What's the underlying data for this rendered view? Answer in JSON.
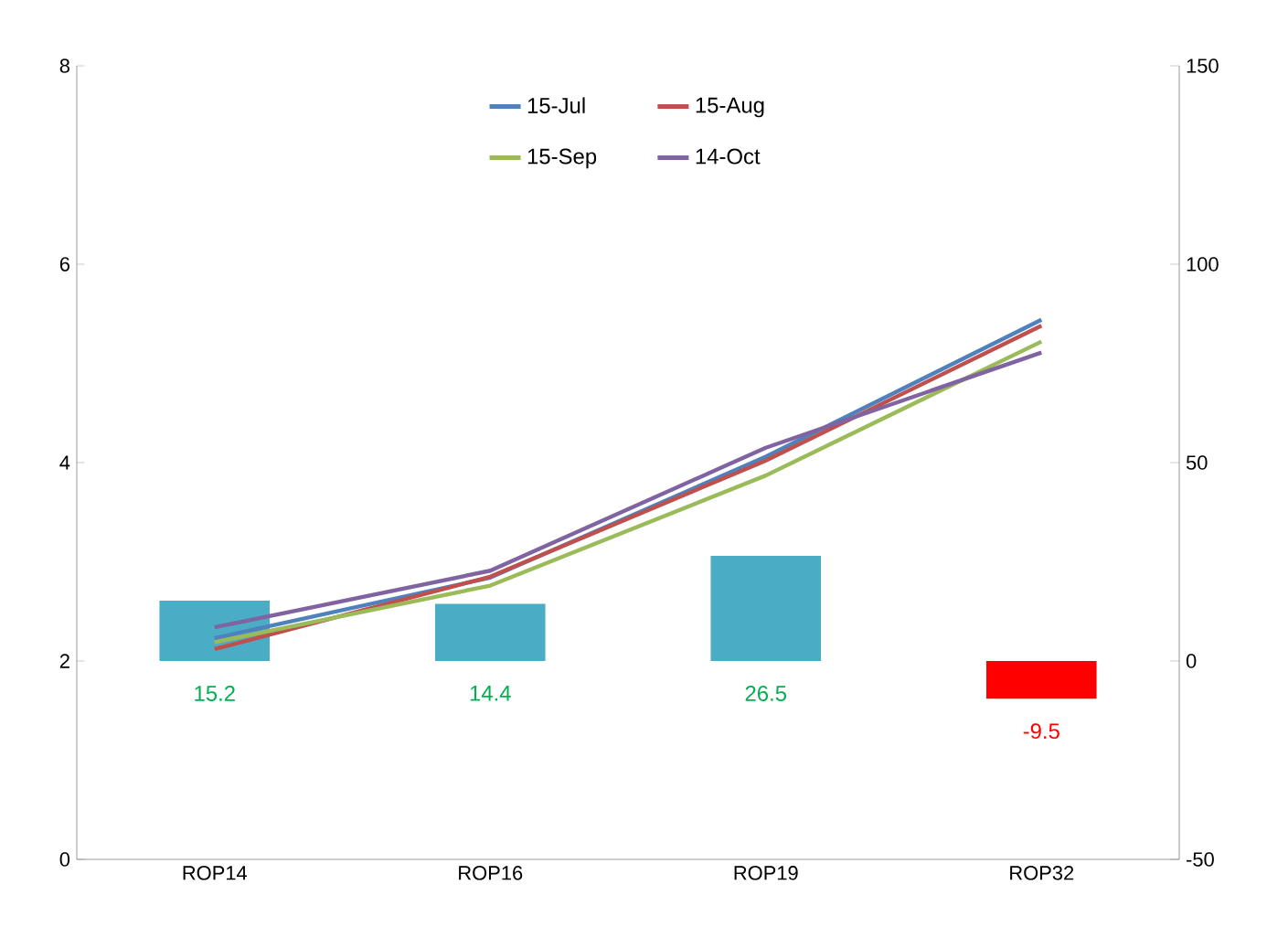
{
  "chart_data": {
    "type": "line",
    "categories": [
      "ROP14",
      "ROP16",
      "ROP19",
      "ROP32"
    ],
    "series": [
      {
        "type": "bar",
        "axis": "y2",
        "colors": [
          "#4bacc6",
          "#4bacc6",
          "#4bacc6",
          "#ff0000"
        ],
        "values": [
          15.2,
          14.4,
          26.5,
          -9.5
        ],
        "value_labels": [
          "15.2",
          "14.4",
          "26.5",
          "-9.5"
        ]
      },
      {
        "name": "15-Jul",
        "color": "#4f81bd",
        "values": [
          2.23,
          2.84,
          4.06,
          5.44
        ]
      },
      {
        "name": "15-Aug",
        "color": "#c0504d",
        "values": [
          2.12,
          2.85,
          4.02,
          5.38
        ]
      },
      {
        "name": "15-Sep",
        "color": "#9bbb59",
        "values": [
          2.19,
          2.76,
          3.87,
          5.22
        ]
      },
      {
        "name": "14-Oct",
        "color": "#8064a2",
        "values": [
          2.34,
          2.91,
          4.15,
          5.11
        ]
      }
    ],
    "ylim": [
      0,
      8
    ],
    "yticks": [
      0,
      2,
      4,
      6,
      8
    ],
    "y2lim": [
      -50,
      150
    ],
    "y2ticks": [
      -50,
      0,
      50,
      100,
      150
    ],
    "legend": "top"
  }
}
